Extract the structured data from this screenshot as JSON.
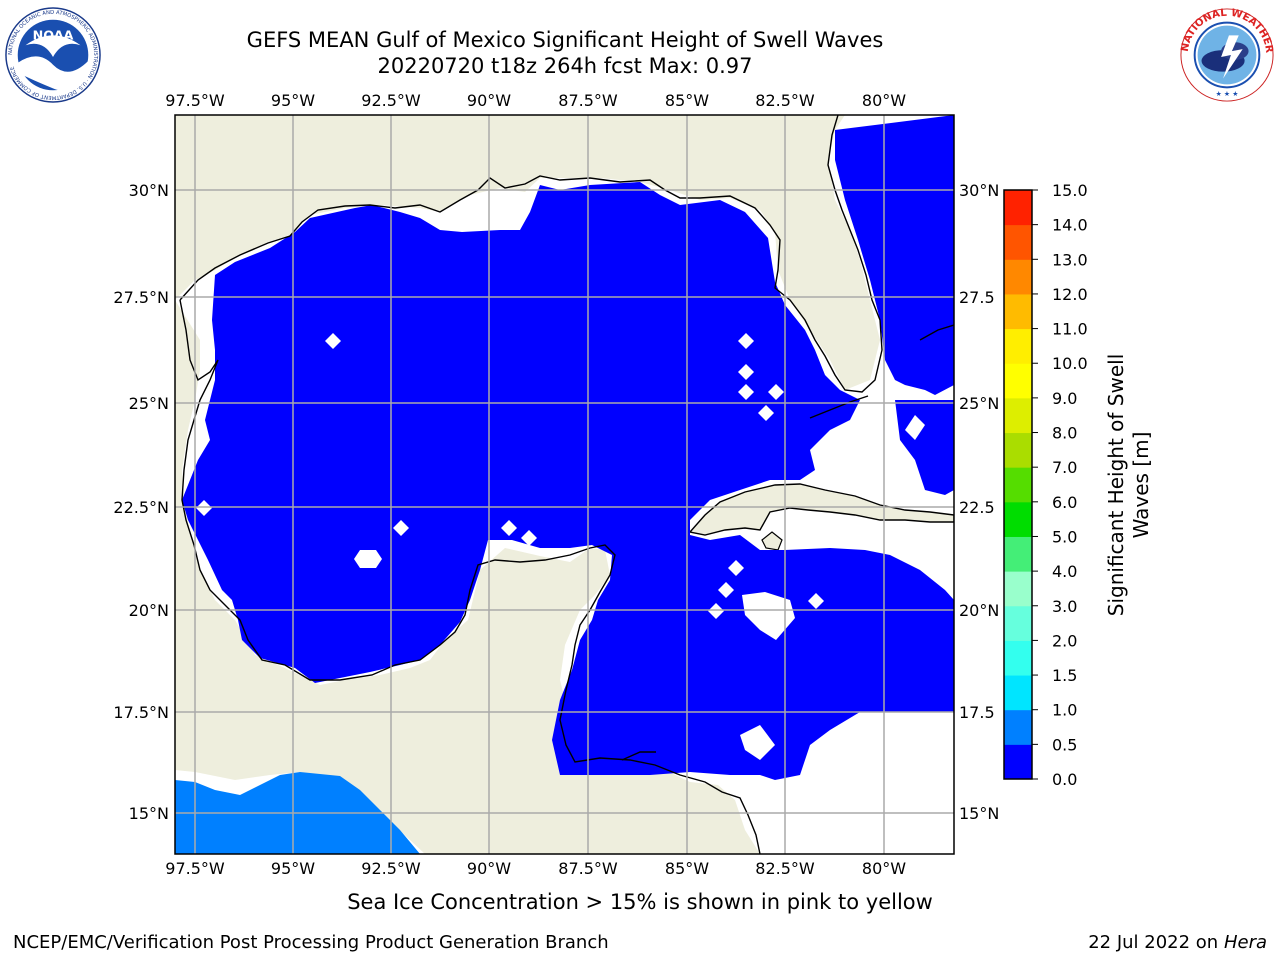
{
  "header": {
    "title_line1": "GEFS MEAN Gulf of Mexico Significant Height of Swell Waves",
    "title_line2": "20220720 t18z 264h fcst   Max: 0.97",
    "noaa_logo_text": "NOAA",
    "noaa_ring_text": "NATIONAL OCEANIC AND ATMOSPHERIC ADMINISTRATION · U.S. DEPARTMENT OF COMMERCE",
    "nws_ring_text": "NATIONAL WEATHER SERVICE"
  },
  "map": {
    "lon_labels": [
      "97.5°W",
      "95°W",
      "92.5°W",
      "90°W",
      "87.5°W",
      "85°W",
      "82.5°W",
      "80°W"
    ],
    "lat_labels": [
      "30°N",
      "27.5°N",
      "25°N",
      "22.5°N",
      "20°N",
      "17.5°N",
      "15°N"
    ],
    "lat_labels_right": [
      "30°N",
      "27.5",
      "25°N",
      "22.5",
      "20°N",
      "17.5",
      "15°N"
    ]
  },
  "colorbar": {
    "label_line1": "Significant Height of Swell",
    "label_line2": "Waves [m]",
    "levels": [
      "0.0",
      "0.5",
      "1.0",
      "1.5",
      "2.0",
      "3.0",
      "4.0",
      "5.0",
      "6.0",
      "7.0",
      "8.0",
      "9.0",
      "10.0",
      "11.0",
      "12.0",
      "13.0",
      "14.0",
      "15.0"
    ],
    "colors": [
      "#0000ff",
      "#0080ff",
      "#00e5ff",
      "#33ffee",
      "#66ffdd",
      "#99ffcc",
      "#44ee77",
      "#00dd00",
      "#55dd00",
      "#aadd00",
      "#ddee00",
      "#ffff00",
      "#ffee00",
      "#ffbb00",
      "#ff8800",
      "#ff5500",
      "#ff2200",
      "#ff0000"
    ]
  },
  "colors": {
    "land": "#eeeedd",
    "water_low": "#0000ff",
    "water_mid": "#0080ff",
    "grid": "#aaaaaa"
  },
  "footer": {
    "subtitle": "Sea Ice Concentration > 15% is shown in pink to yellow",
    "left": "NCEP/EMC/Verification Post Processing Product Generation Branch",
    "right_date": "22 Jul 2022 on ",
    "right_host": "Hera"
  }
}
